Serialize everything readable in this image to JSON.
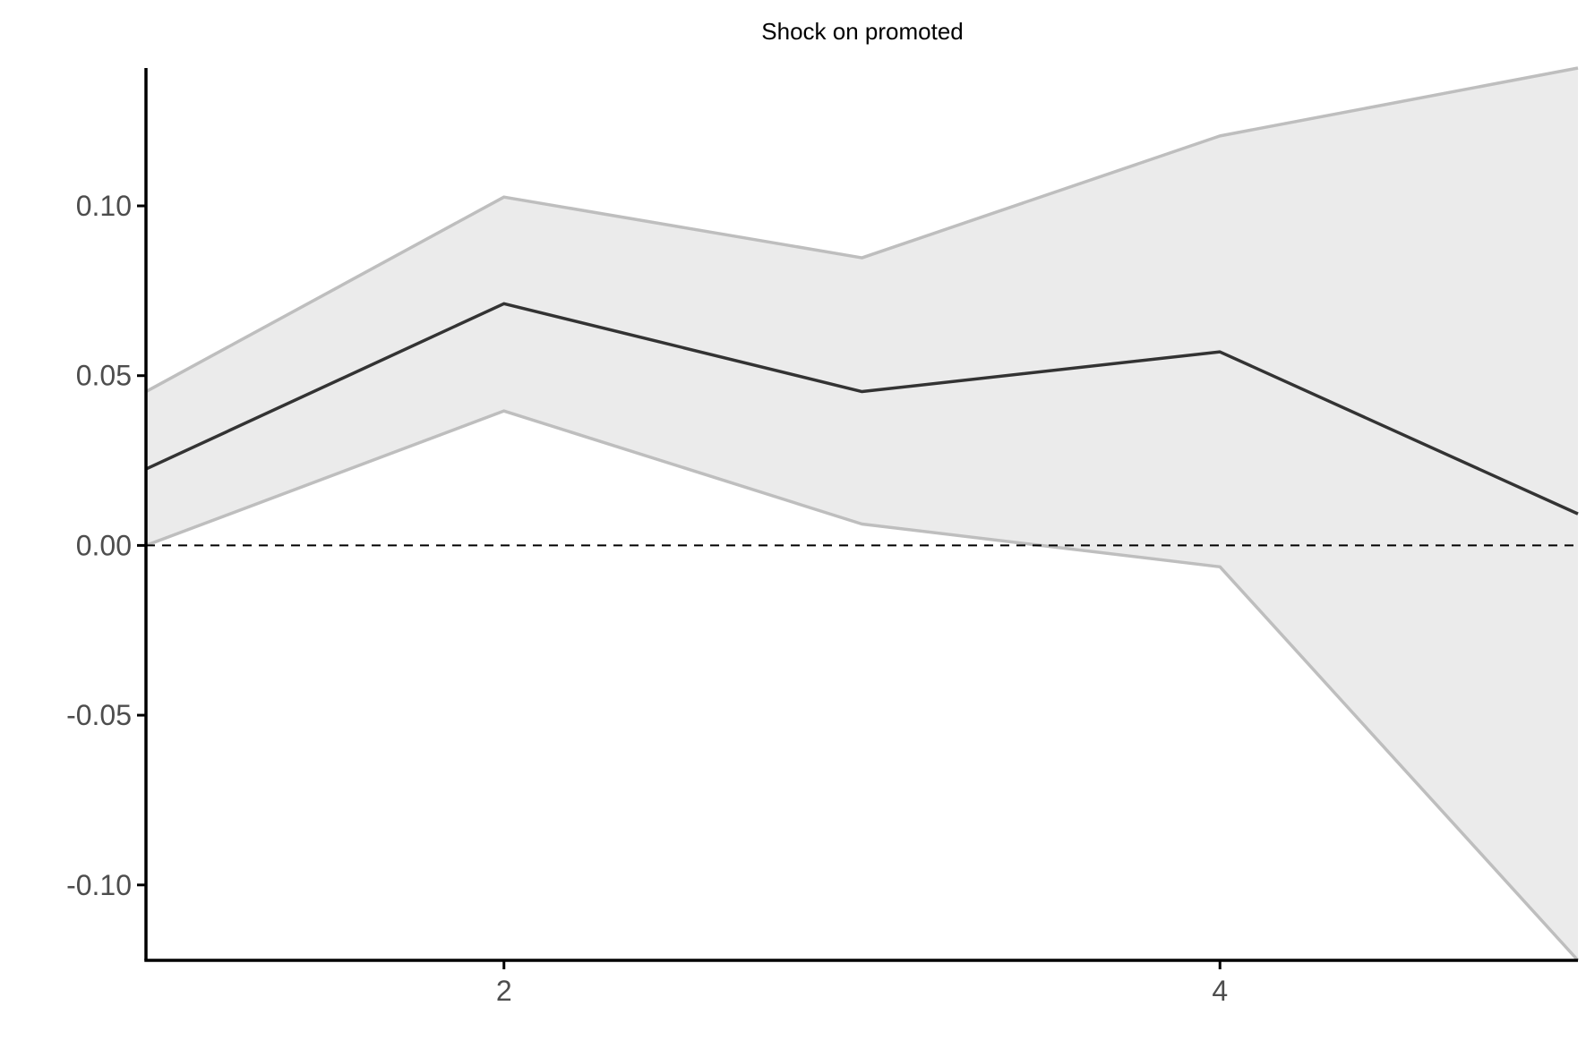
{
  "chart_data": {
    "type": "line",
    "title": "Shock on promoted",
    "xlabel": "",
    "ylabel": "",
    "x": [
      1,
      2,
      3,
      4,
      5
    ],
    "series": [
      {
        "role": "estimate",
        "values": [
          0.0225,
          0.0712,
          0.0453,
          0.057,
          0.0093
        ]
      },
      {
        "role": "upper_band",
        "values": [
          0.0453,
          0.1026,
          0.0847,
          0.1206,
          0.1406
        ]
      },
      {
        "role": "lower_band",
        "values": [
          0.0,
          0.0396,
          0.0063,
          -0.0063,
          -0.1222
        ]
      }
    ],
    "reference_line": {
      "y": 0,
      "style": "dashed"
    },
    "xlim": [
      1,
      5
    ],
    "ylim": [
      -0.1222,
      0.1406
    ],
    "x_ticks": [
      2,
      4
    ],
    "x_tick_labels": [
      "2",
      "4"
    ],
    "y_ticks": [
      -0.1,
      -0.05,
      0.0,
      0.05,
      0.1
    ],
    "y_tick_labels": [
      "-0.10",
      "-0.05",
      "0.00",
      "0.05",
      "0.10"
    ],
    "grid": false,
    "legend": "none",
    "colors": {
      "estimate_line": "#333333",
      "band_fill": "#ebebeb",
      "band_edge": "#bebebe",
      "axis": "#000000",
      "tick_label": "#4d4d4d",
      "reference_line": "#000000"
    }
  }
}
